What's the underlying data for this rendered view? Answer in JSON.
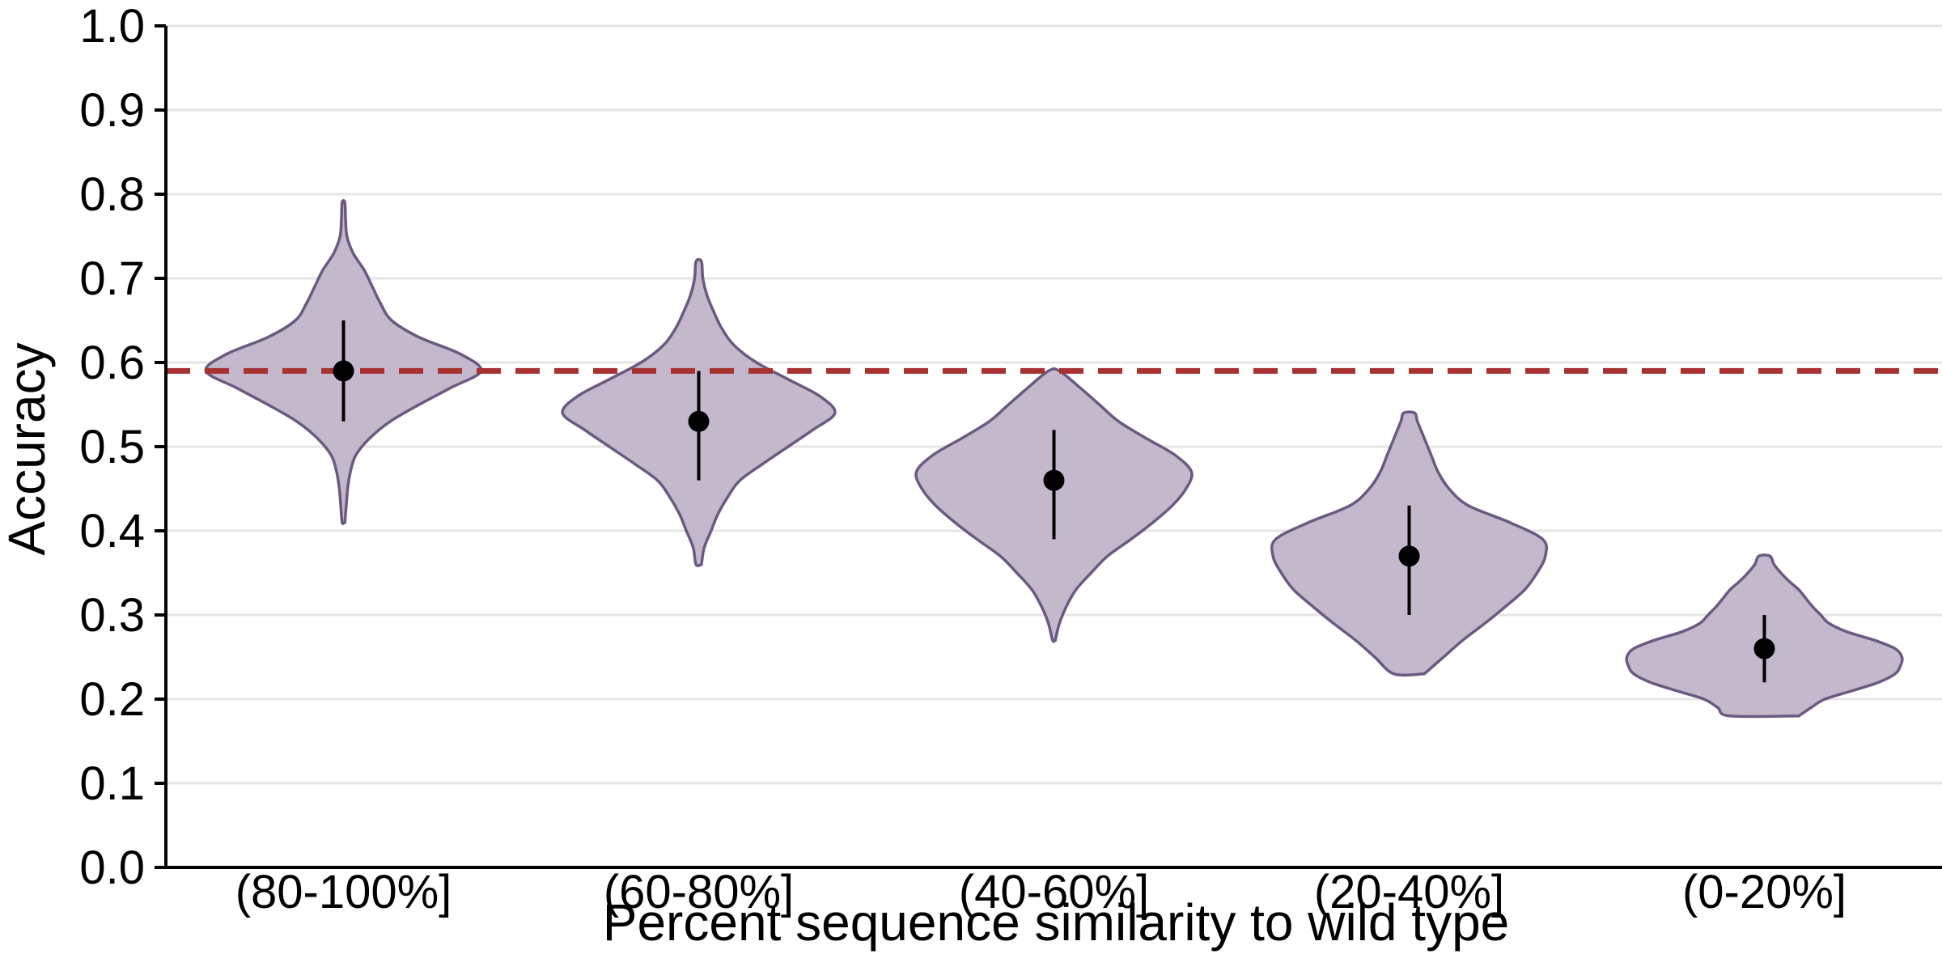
{
  "chart_data": {
    "type": "violin",
    "xlabel": "Percent sequence similarity to wild type",
    "ylabel": "Accuracy",
    "ylim": [
      0.0,
      1.0
    ],
    "yticks": [
      "0.0",
      "0.1",
      "0.2",
      "0.3",
      "0.4",
      "0.5",
      "0.6",
      "0.7",
      "0.8",
      "0.9",
      "1.0"
    ],
    "grid": "horizontal",
    "reference_line": {
      "value": 0.59,
      "style": "dashed",
      "color": "#a83232"
    },
    "colors": {
      "violin_fill": "#c4b9cc",
      "violin_edge": "#6b5a80",
      "marker": "#000000"
    },
    "categories": [
      "(80-100%]",
      "(60-80%]",
      "(40-60%]",
      "(20-40%]",
      "(0-20%]"
    ],
    "series": [
      {
        "mean": 0.59,
        "err_low": 0.53,
        "err_high": 0.65,
        "min": 0.41,
        "max": 0.79,
        "profile": [
          [
            0.41,
            0.01
          ],
          [
            0.43,
            0.02
          ],
          [
            0.45,
            0.03
          ],
          [
            0.47,
            0.05
          ],
          [
            0.49,
            0.09
          ],
          [
            0.51,
            0.19
          ],
          [
            0.53,
            0.34
          ],
          [
            0.55,
            0.55
          ],
          [
            0.57,
            0.78
          ],
          [
            0.59,
            1.0
          ],
          [
            0.61,
            0.85
          ],
          [
            0.63,
            0.55
          ],
          [
            0.65,
            0.35
          ],
          [
            0.67,
            0.27
          ],
          [
            0.69,
            0.21
          ],
          [
            0.71,
            0.15
          ],
          [
            0.73,
            0.07
          ],
          [
            0.75,
            0.025
          ],
          [
            0.77,
            0.015
          ],
          [
            0.79,
            0.01
          ]
        ]
      },
      {
        "mean": 0.53,
        "err_low": 0.46,
        "err_high": 0.59,
        "min": 0.36,
        "max": 0.72,
        "profile": [
          [
            0.36,
            0.02
          ],
          [
            0.38,
            0.04
          ],
          [
            0.4,
            0.09
          ],
          [
            0.42,
            0.14
          ],
          [
            0.44,
            0.21
          ],
          [
            0.46,
            0.3
          ],
          [
            0.48,
            0.47
          ],
          [
            0.5,
            0.65
          ],
          [
            0.52,
            0.83
          ],
          [
            0.54,
            0.99
          ],
          [
            0.56,
            0.88
          ],
          [
            0.58,
            0.65
          ],
          [
            0.6,
            0.42
          ],
          [
            0.62,
            0.26
          ],
          [
            0.64,
            0.17
          ],
          [
            0.66,
            0.11
          ],
          [
            0.68,
            0.06
          ],
          [
            0.7,
            0.03
          ],
          [
            0.72,
            0.02
          ]
        ]
      },
      {
        "mean": 0.46,
        "err_low": 0.39,
        "err_high": 0.52,
        "min": 0.27,
        "max": 0.59,
        "profile": [
          [
            0.27,
            0.01
          ],
          [
            0.29,
            0.04
          ],
          [
            0.31,
            0.09
          ],
          [
            0.33,
            0.16
          ],
          [
            0.35,
            0.27
          ],
          [
            0.37,
            0.39
          ],
          [
            0.39,
            0.56
          ],
          [
            0.41,
            0.72
          ],
          [
            0.43,
            0.86
          ],
          [
            0.45,
            0.96
          ],
          [
            0.47,
            1.0
          ],
          [
            0.49,
            0.88
          ],
          [
            0.51,
            0.67
          ],
          [
            0.53,
            0.47
          ],
          [
            0.55,
            0.33
          ],
          [
            0.57,
            0.19
          ],
          [
            0.59,
            0.04
          ]
        ]
      },
      {
        "mean": 0.37,
        "err_low": 0.3,
        "err_high": 0.43,
        "min": 0.23,
        "max": 0.54,
        "profile": [
          [
            0.23,
            0.11
          ],
          [
            0.25,
            0.25
          ],
          [
            0.27,
            0.39
          ],
          [
            0.29,
            0.55
          ],
          [
            0.31,
            0.7
          ],
          [
            0.33,
            0.84
          ],
          [
            0.35,
            0.93
          ],
          [
            0.37,
            0.99
          ],
          [
            0.39,
            0.97
          ],
          [
            0.41,
            0.73
          ],
          [
            0.43,
            0.43
          ],
          [
            0.45,
            0.29
          ],
          [
            0.47,
            0.21
          ],
          [
            0.49,
            0.16
          ],
          [
            0.51,
            0.11
          ],
          [
            0.53,
            0.06
          ],
          [
            0.54,
            0.04
          ]
        ]
      },
      {
        "mean": 0.26,
        "err_low": 0.22,
        "err_high": 0.3,
        "min": 0.18,
        "max": 0.37,
        "profile": [
          [
            0.18,
            0.25
          ],
          [
            0.19,
            0.34
          ],
          [
            0.2,
            0.44
          ],
          [
            0.21,
            0.64
          ],
          [
            0.22,
            0.83
          ],
          [
            0.23,
            0.95
          ],
          [
            0.24,
            0.99
          ],
          [
            0.25,
            1.0
          ],
          [
            0.26,
            0.95
          ],
          [
            0.27,
            0.8
          ],
          [
            0.28,
            0.6
          ],
          [
            0.29,
            0.47
          ],
          [
            0.3,
            0.41
          ],
          [
            0.31,
            0.35
          ],
          [
            0.32,
            0.3
          ],
          [
            0.33,
            0.25
          ],
          [
            0.34,
            0.18
          ],
          [
            0.35,
            0.12
          ],
          [
            0.36,
            0.07
          ],
          [
            0.37,
            0.04
          ]
        ]
      }
    ]
  }
}
